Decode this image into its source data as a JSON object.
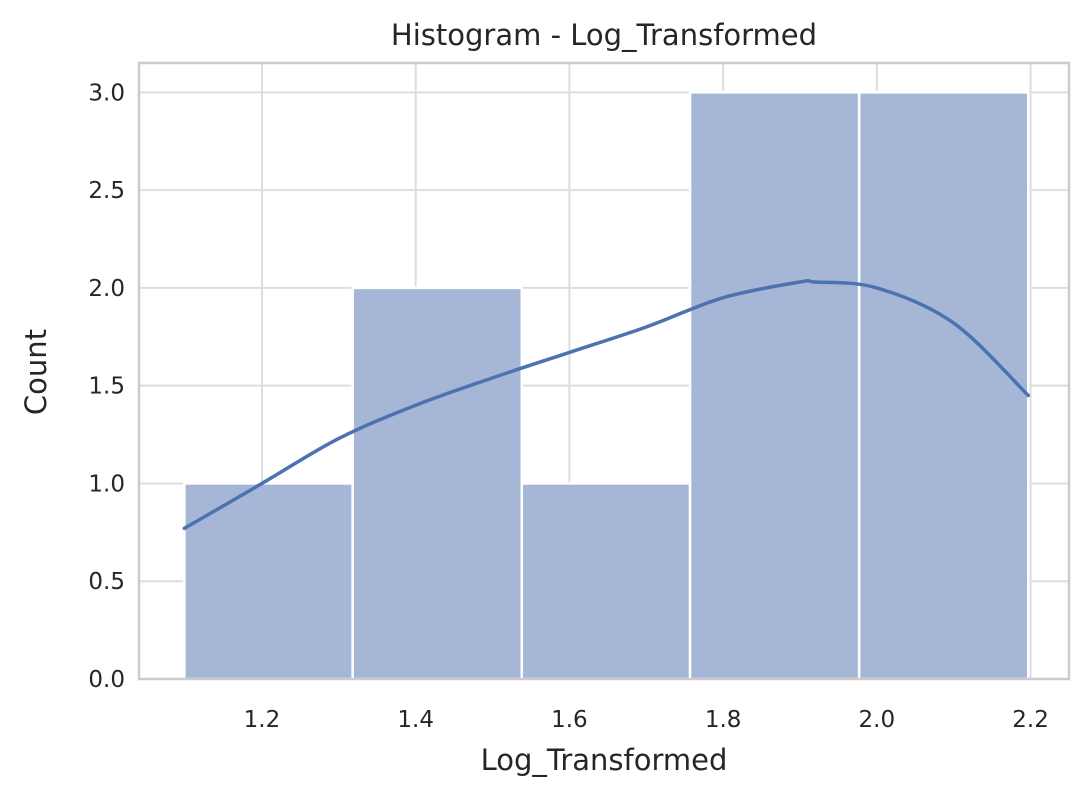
{
  "chart_data": {
    "type": "bar",
    "subtype": "histogram-with-kde",
    "title": "Histogram - Log_Transformed",
    "xlabel": "Log_Transformed",
    "ylabel": "Count",
    "xlim": [
      1.04,
      2.25
    ],
    "ylim": [
      0,
      3.15
    ],
    "grid": true,
    "legend": "none",
    "bins": [
      {
        "x0": 1.099,
        "x1": 1.318,
        "count": 1
      },
      {
        "x0": 1.318,
        "x1": 1.538,
        "count": 2
      },
      {
        "x0": 1.538,
        "x1": 1.757,
        "count": 1
      },
      {
        "x0": 1.757,
        "x1": 1.977,
        "count": 3
      },
      {
        "x0": 1.977,
        "x1": 2.197,
        "count": 3
      }
    ],
    "kde": {
      "x": [
        1.099,
        1.2,
        1.3,
        1.4,
        1.5,
        1.6,
        1.7,
        1.8,
        1.9,
        1.92,
        2.0,
        2.1,
        2.197
      ],
      "y": [
        0.77,
        1.0,
        1.23,
        1.4,
        1.54,
        1.67,
        1.8,
        1.95,
        2.03,
        2.03,
        2.0,
        1.82,
        1.45
      ]
    },
    "xticks": [
      "1.2",
      "1.4",
      "1.6",
      "1.8",
      "2.0",
      "2.2"
    ],
    "yticks": [
      "0.0",
      "0.5",
      "1.0",
      "1.5",
      "2.0",
      "2.5",
      "3.0"
    ],
    "colors": {
      "bar_fill": "#a5b6d6",
      "bar_edge": "#ffffff",
      "kde_line": "#4c72b0",
      "grid": "#dddddd",
      "frame": "#cccccc",
      "text": "#262626"
    }
  }
}
